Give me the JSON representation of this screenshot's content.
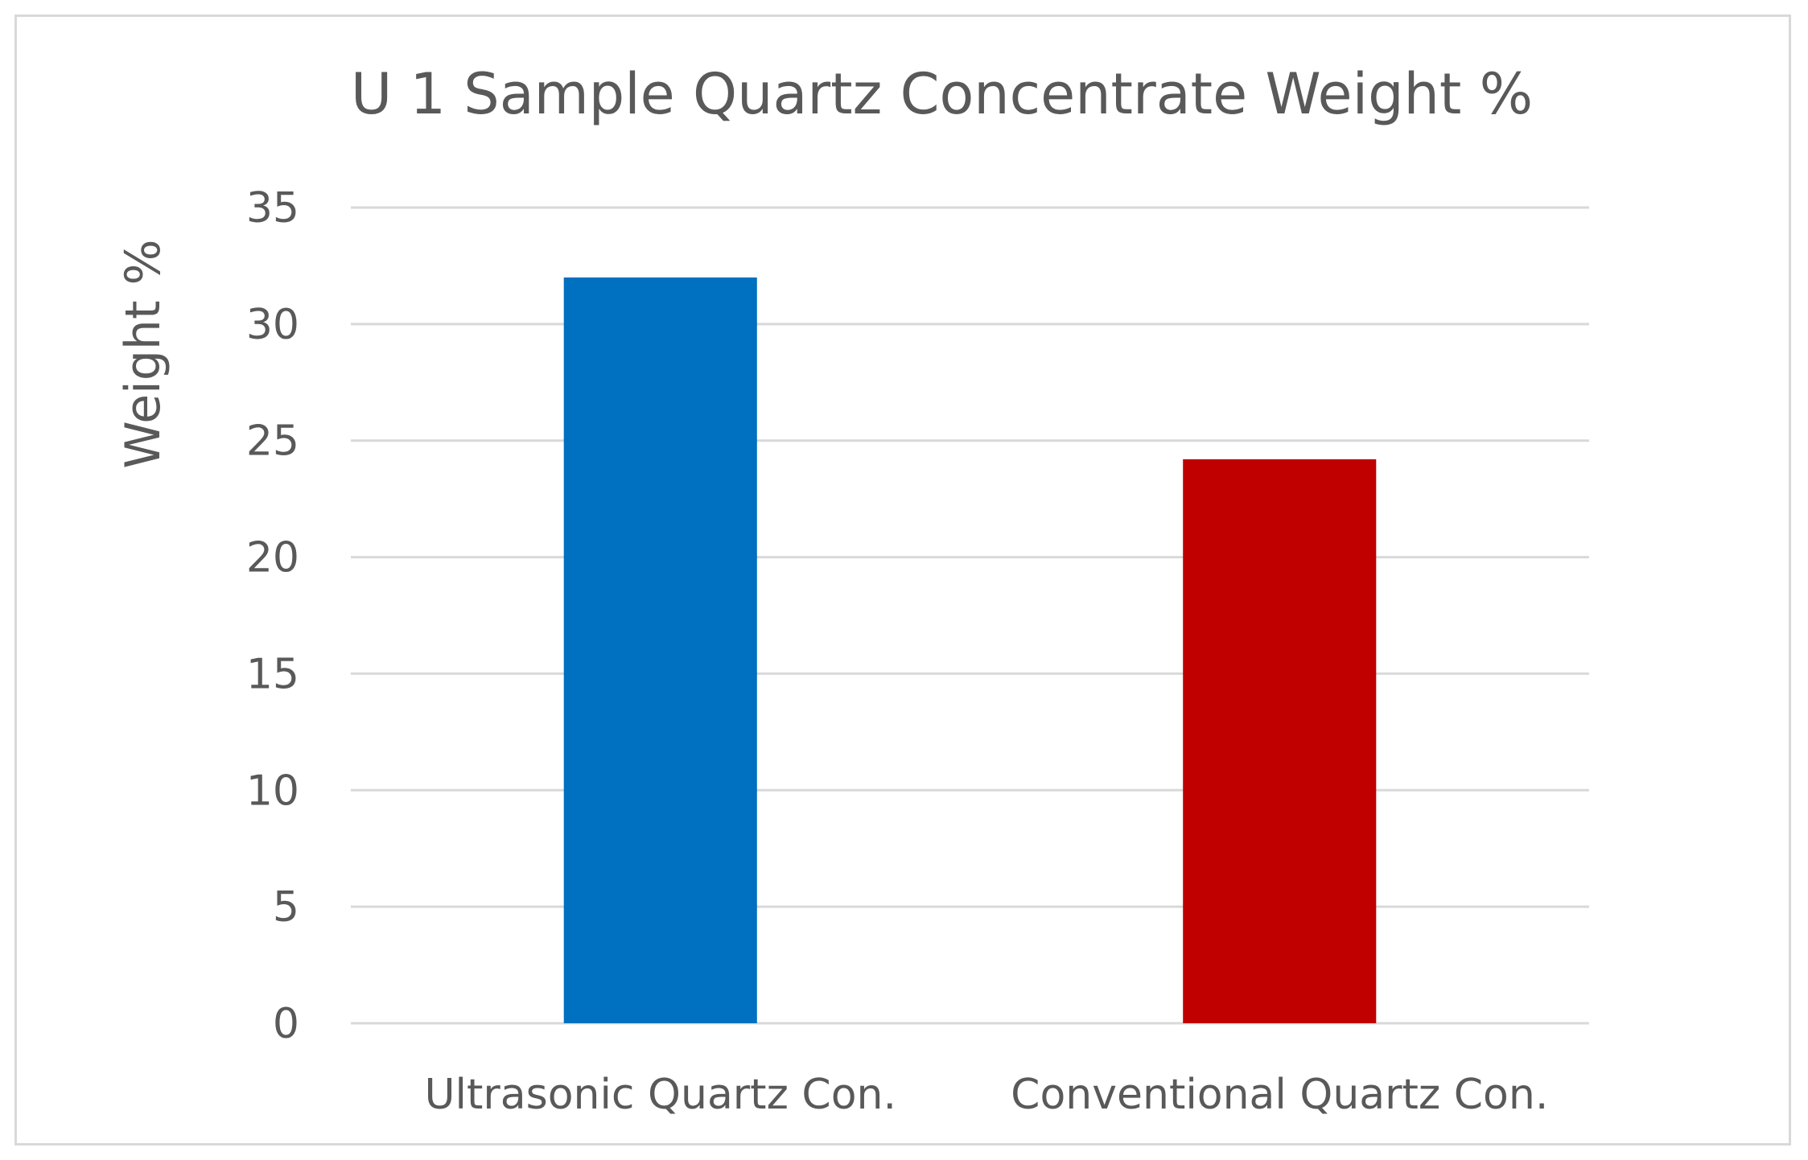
{
  "chart_data": {
    "type": "bar",
    "title": "U 1 Sample Quartz Concentrate Weight %",
    "ylabel": "Weight %",
    "xlabel": "",
    "categories": [
      "Ultrasonic Quartz Con.",
      "Conventional Quartz Con."
    ],
    "values": [
      32,
      24.2
    ],
    "colors": [
      "#0070c0",
      "#c00000"
    ],
    "ylim": [
      0,
      35
    ],
    "yticks": [
      0,
      5,
      10,
      15,
      20,
      25,
      30,
      35
    ],
    "grid": true,
    "gridline_color": "#d9d9d9",
    "text_color": "#595959"
  }
}
